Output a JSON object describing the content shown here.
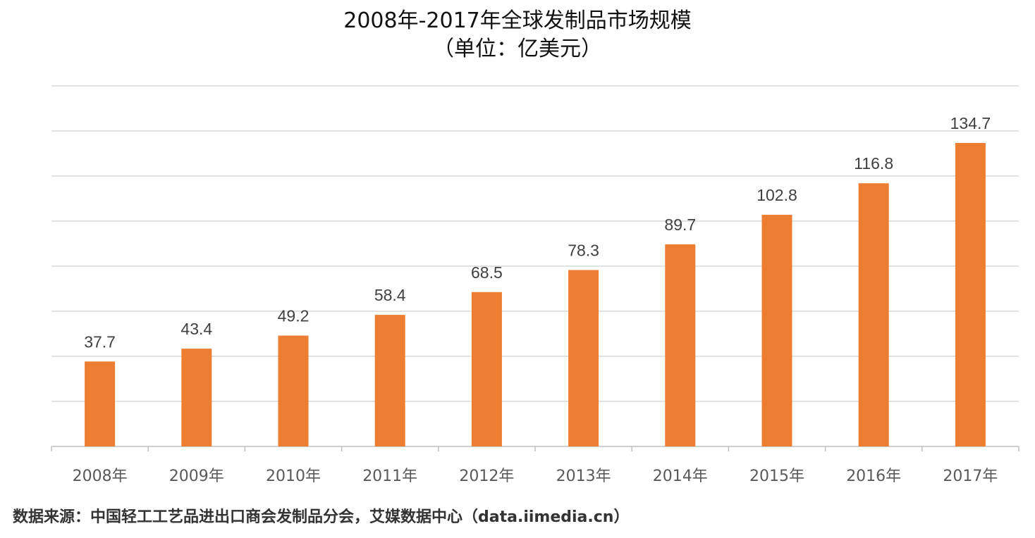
{
  "title": "2008年-2017年全球发制品市场规模",
  "subtitle": "（单位：亿美元）",
  "source": "数据来源：中国轻工工艺品进出口商会发制品分会，艾媒数据中心（data.iimedia.cn）",
  "colors": {
    "bar": "#ED7D31",
    "grid": "#D9D9D9",
    "axis": "#BFBFBF",
    "label": "#404040",
    "tick": "#595959"
  },
  "chart_data": {
    "type": "bar",
    "title": "2008年-2017年全球发制品市场规模",
    "subtitle": "（单位：亿美元）",
    "categories": [
      "2008年",
      "2009年",
      "2010年",
      "2011年",
      "2012年",
      "2013年",
      "2014年",
      "2015年",
      "2016年",
      "2017年"
    ],
    "values": [
      37.7,
      43.4,
      49.2,
      58.4,
      68.5,
      78.3,
      89.7,
      102.8,
      116.8,
      134.7
    ],
    "xlabel": "",
    "ylabel": "",
    "ylim": [
      0,
      160
    ],
    "gridline_step": 20,
    "grid": true,
    "data_labels": true,
    "y_tick_labels": false
  }
}
